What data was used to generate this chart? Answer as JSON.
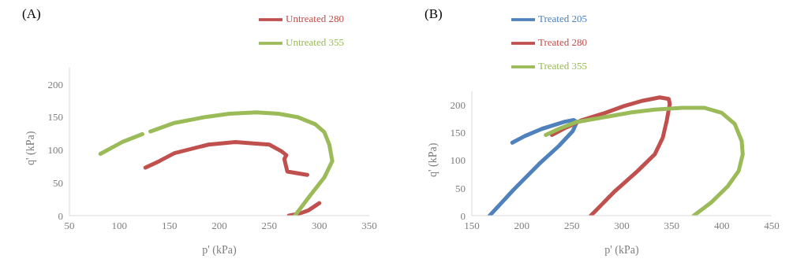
{
  "chart_data": [
    {
      "type": "line",
      "title": "(A)",
      "xlabel": "p' (kPa)",
      "ylabel": "q' (kPa)",
      "xlim": [
        50,
        350
      ],
      "xticks": [
        50,
        100,
        150,
        200,
        250,
        300,
        350
      ],
      "ylim": [
        0,
        225
      ],
      "yticks": [
        0,
        50,
        100,
        150,
        200
      ],
      "grid": false,
      "legend": "top right",
      "marker": "none",
      "line_style": "solid",
      "series": [
        {
          "name": "Untreated 280",
          "color": "#c0504d",
          "x": [
            269.5,
            280,
            289,
            300,
            null,
            288,
            268,
            265,
            267,
            262,
            250,
            216,
            189,
            155,
            140,
            126
          ],
          "values": [
            0,
            3,
            8,
            19,
            null,
            62,
            67,
            86,
            92,
            98,
            108,
            112,
            108,
            95,
            83,
            73
          ]
        },
        {
          "name": "Untreated 355",
          "color": "#9bbb59",
          "x": [
            275.6,
            292,
            305,
            313,
            310,
            305,
            296,
            278,
            259,
            237,
            210,
            186,
            155,
            131,
            null,
            123,
            103,
            81
          ],
          "values": [
            0,
            33,
            58,
            83,
            108,
            127,
            139,
            150,
            155,
            157,
            155,
            150,
            141,
            128,
            null,
            124,
            112,
            94
          ]
        }
      ]
    },
    {
      "type": "line",
      "title": "(B)",
      "xlabel": "p' (kPa)",
      "ylabel": "q' (kPa)",
      "xlim": [
        150,
        450
      ],
      "xticks": [
        150,
        200,
        250,
        300,
        350,
        400,
        450
      ],
      "ylim": [
        0,
        225
      ],
      "yticks": [
        0,
        50,
        100,
        150,
        200
      ],
      "grid": false,
      "legend": "top left",
      "marker": "none",
      "line_style": "solid",
      "series": [
        {
          "name": "Treated 205",
          "color": "#4f81bd",
          "x": [
            167.8,
            191.8,
            217,
            237,
            251,
            255,
            252,
            243,
            220,
            203,
            190.5
          ],
          "values": [
            0,
            47,
            93,
            126,
            153,
            169,
            173,
            170,
            157,
            144,
            132
          ]
        },
        {
          "name": "Treated 280",
          "color": "#c0504d",
          "x": [
            269,
            293,
            316,
            333,
            341,
            345,
            348,
            347,
            338,
            321,
            302,
            282,
            259,
            245,
            230
          ],
          "values": [
            0,
            44,
            81,
            111,
            141,
            172,
            202,
            211,
            214,
            208,
            198,
            185,
            172,
            160,
            146
          ]
        },
        {
          "name": "Treated 355",
          "color": "#9bbb59",
          "x": [
            372,
            389,
            406,
            417,
            421,
            420,
            413,
            400,
            383,
            361,
            333,
            310,
            282,
            254,
            237,
            224
          ],
          "values": [
            0,
            23,
            53,
            81,
            111,
            135,
            166,
            186,
            195,
            195,
            192,
            187,
            178,
            169,
            157,
            146
          ]
        }
      ]
    }
  ]
}
